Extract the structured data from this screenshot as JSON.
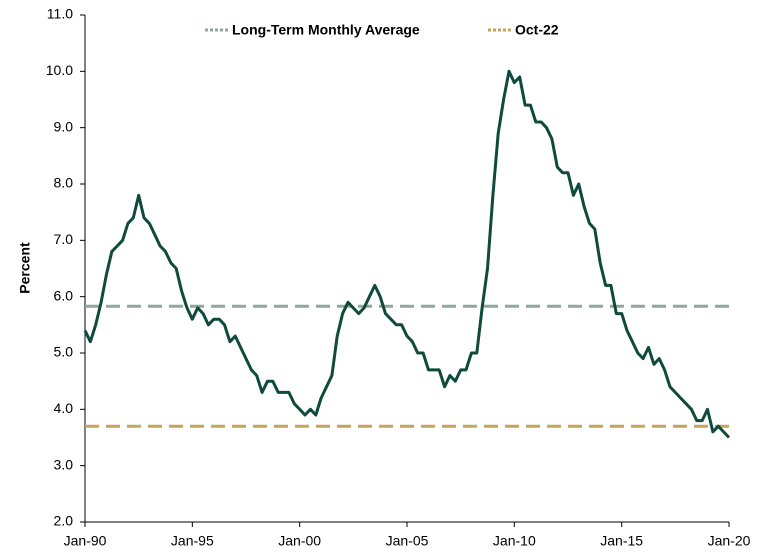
{
  "chart_data": {
    "type": "line",
    "y_label": "Percent",
    "categories": [
      "Jan-90",
      null,
      null,
      null,
      null,
      null,
      null,
      null,
      null,
      null,
      null,
      null,
      null,
      null,
      null,
      null,
      null,
      null,
      null,
      null,
      "Jan-95",
      null,
      null,
      null,
      null,
      null,
      null,
      null,
      null,
      null,
      null,
      null,
      null,
      null,
      null,
      null,
      null,
      null,
      null,
      null,
      "Jan-00",
      null,
      null,
      null,
      null,
      null,
      null,
      null,
      null,
      null,
      null,
      null,
      null,
      null,
      null,
      null,
      null,
      null,
      null,
      null,
      "Jan-05",
      null,
      null,
      null,
      null,
      null,
      null,
      null,
      null,
      null,
      null,
      null,
      null,
      null,
      null,
      null,
      null,
      null,
      null,
      null,
      "Jan-10",
      null,
      null,
      null,
      null,
      null,
      null,
      null,
      null,
      null,
      null,
      null,
      null,
      null,
      null,
      null,
      null,
      null,
      null,
      null,
      "Jan-15",
      null,
      null,
      null,
      null,
      null,
      null,
      null,
      null,
      null,
      null,
      null,
      null,
      null,
      null,
      null,
      null,
      null,
      null,
      null,
      "Jan-20"
    ],
    "series": [
      {
        "color": "#0f4a3c",
        "values": [
          5.4,
          5.2,
          5.5,
          5.9,
          6.4,
          6.8,
          6.9,
          7.0,
          7.3,
          7.4,
          7.8,
          7.4,
          7.3,
          7.1,
          6.9,
          6.8,
          6.6,
          6.5,
          6.1,
          5.8,
          5.6,
          5.8,
          5.7,
          5.5,
          5.6,
          5.6,
          5.5,
          5.2,
          5.3,
          5.1,
          4.9,
          4.7,
          4.6,
          4.3,
          4.5,
          4.5,
          4.3,
          4.3,
          4.3,
          4.1,
          4.0,
          3.9,
          4.0,
          3.9,
          4.2,
          4.4,
          4.6,
          5.3,
          5.7,
          5.9,
          5.8,
          5.7,
          5.8,
          6.0,
          6.2,
          6.0,
          5.7,
          5.6,
          5.5,
          5.5,
          5.3,
          5.2,
          5.0,
          5.0,
          4.7,
          4.7,
          4.7,
          4.4,
          4.6,
          4.5,
          4.7,
          4.7,
          5.0,
          5.0,
          5.8,
          6.5,
          7.8,
          8.9,
          9.5,
          10.0,
          9.8,
          9.9,
          9.4,
          9.4,
          9.1,
          9.1,
          9.0,
          8.8,
          8.3,
          8.2,
          8.2,
          7.8,
          8.0,
          7.6,
          7.3,
          7.2,
          6.6,
          6.2,
          6.2,
          5.7,
          5.7,
          5.4,
          5.2,
          5.0,
          4.9,
          5.1,
          4.8,
          4.9,
          4.7,
          4.4,
          4.3,
          4.2,
          4.1,
          4.0,
          3.8,
          3.8,
          4.0,
          3.6,
          3.7,
          3.6,
          3.5
        ]
      }
    ],
    "reference_lines": [
      {
        "name": "Long-Term Monthly Average",
        "value": 5.83,
        "color": "#8fa89a"
      },
      {
        "name": "Oct-22",
        "value": 3.7,
        "color": "#c9a35a"
      }
    ],
    "ylim": [
      2,
      11
    ],
    "yticks": [
      {
        "value": 2,
        "label": "2.0"
      },
      {
        "value": 3,
        "label": "3.0"
      },
      {
        "value": 4,
        "label": "4.0"
      },
      {
        "value": 5,
        "label": "5.0"
      },
      {
        "value": 6,
        "label": "6.0"
      },
      {
        "value": 7,
        "label": "7.0"
      },
      {
        "value": 8,
        "label": "8.0"
      },
      {
        "value": 9,
        "label": "9.0"
      },
      {
        "value": 10,
        "label": "10.0"
      },
      {
        "value": 11,
        "label": "11.0"
      }
    ]
  }
}
